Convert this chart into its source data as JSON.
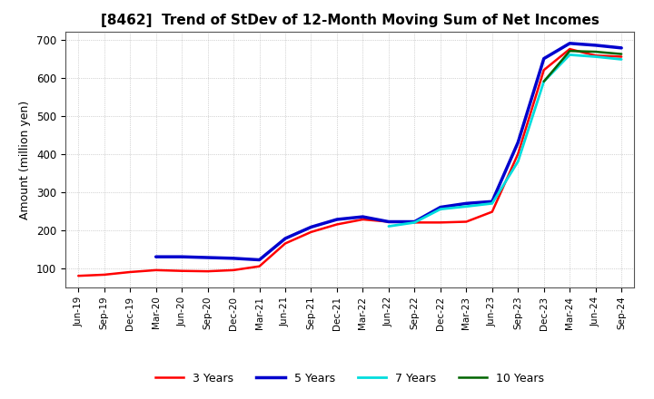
{
  "title": "[8462]  Trend of StDev of 12-Month Moving Sum of Net Incomes",
  "ylabel": "Amount (million yen)",
  "ylim": [
    50,
    720
  ],
  "yticks": [
    100,
    200,
    300,
    400,
    500,
    600,
    700
  ],
  "background_color": "#ffffff",
  "grid_color": "#b0b0b0",
  "legend": [
    "3 Years",
    "5 Years",
    "7 Years",
    "10 Years"
  ],
  "legend_colors": [
    "#ff0000",
    "#0000cd",
    "#00dddd",
    "#006400"
  ],
  "x_labels": [
    "Jun-19",
    "Sep-19",
    "Dec-19",
    "Mar-20",
    "Jun-20",
    "Sep-20",
    "Dec-20",
    "Mar-21",
    "Jun-21",
    "Sep-21",
    "Dec-21",
    "Mar-22",
    "Jun-22",
    "Sep-22",
    "Dec-22",
    "Mar-23",
    "Jun-23",
    "Sep-23",
    "Dec-23",
    "Mar-24",
    "Jun-24",
    "Sep-24"
  ],
  "series_3yr": [
    80,
    83,
    90,
    95,
    93,
    92,
    95,
    105,
    165,
    195,
    215,
    228,
    222,
    220,
    220,
    222,
    248,
    400,
    620,
    675,
    658,
    655
  ],
  "series_5yr": [
    null,
    null,
    null,
    130,
    130,
    128,
    126,
    122,
    178,
    208,
    228,
    235,
    222,
    222,
    260,
    270,
    275,
    430,
    650,
    690,
    685,
    678
  ],
  "series_7yr": [
    null,
    null,
    null,
    null,
    null,
    null,
    null,
    null,
    null,
    null,
    null,
    null,
    210,
    220,
    255,
    262,
    270,
    380,
    590,
    660,
    655,
    648
  ],
  "series_10yr": [
    null,
    null,
    null,
    null,
    null,
    null,
    null,
    null,
    null,
    null,
    null,
    null,
    null,
    null,
    null,
    null,
    null,
    null,
    590,
    670,
    668,
    662
  ],
  "linewidths": [
    1.8,
    2.5,
    2.0,
    1.8
  ]
}
